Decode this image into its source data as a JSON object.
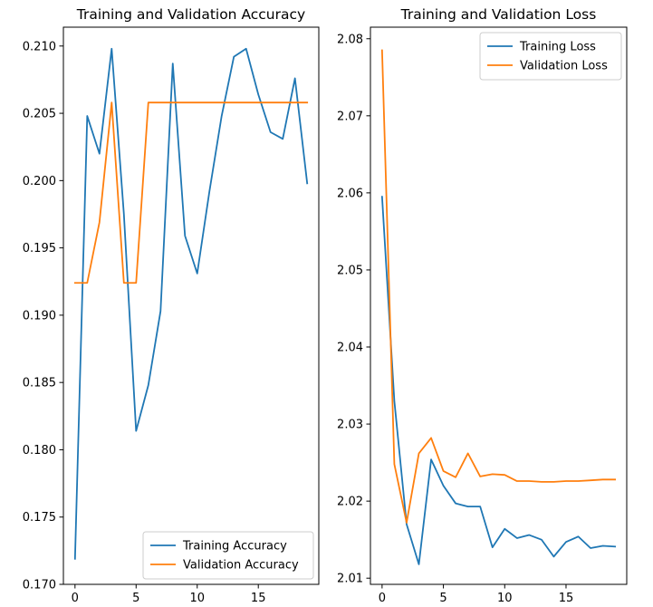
{
  "chart_data": [
    {
      "type": "line",
      "title": "Training and Validation Accuracy",
      "xlabel": "",
      "ylabel": "",
      "xlim": [
        -0.95,
        19.95
      ],
      "ylim": [
        0.17,
        0.2114
      ],
      "xticks": [
        0,
        5,
        10,
        15
      ],
      "xtick_labels": [
        "0",
        "5",
        "10",
        "15"
      ],
      "yticks": [
        0.17,
        0.175,
        0.18,
        0.185,
        0.19,
        0.195,
        0.2,
        0.205,
        0.21
      ],
      "ytick_labels": [
        "0.170",
        "0.175",
        "0.180",
        "0.185",
        "0.190",
        "0.195",
        "0.200",
        "0.205",
        "0.210"
      ],
      "legend_position": "lower-right",
      "grid": false,
      "x": [
        0,
        1,
        2,
        3,
        4,
        5,
        6,
        7,
        8,
        9,
        10,
        11,
        12,
        13,
        14,
        15,
        16,
        17,
        18,
        19
      ],
      "series": [
        {
          "name": "Training Accuracy",
          "color": "#1f77b4",
          "values": [
            0.1719,
            0.2048,
            0.202,
            0.2098,
            0.1975,
            0.1814,
            0.1848,
            0.1903,
            0.2087,
            0.1959,
            0.1931,
            0.1992,
            0.2048,
            0.2092,
            0.2098,
            0.2064,
            0.2036,
            0.2031,
            0.2076,
            0.1998
          ]
        },
        {
          "name": "Validation Accuracy",
          "color": "#ff7f0e",
          "values": [
            0.1924,
            0.1924,
            0.1969,
            0.2058,
            0.1924,
            0.1924,
            0.2058,
            0.2058,
            0.2058,
            0.2058,
            0.2058,
            0.2058,
            0.2058,
            0.2058,
            0.2058,
            0.2058,
            0.2058,
            0.2058,
            0.2058,
            0.2058
          ]
        }
      ]
    },
    {
      "type": "line",
      "title": "Training and Validation Loss",
      "xlabel": "",
      "ylabel": "",
      "xlim": [
        -0.95,
        19.95
      ],
      "ylim": [
        2.0092,
        2.0815
      ],
      "xticks": [
        0,
        5,
        10,
        15
      ],
      "xtick_labels": [
        "0",
        "5",
        "10",
        "15"
      ],
      "yticks": [
        2.01,
        2.02,
        2.03,
        2.04,
        2.05,
        2.06,
        2.07,
        2.08
      ],
      "ytick_labels": [
        "2.01",
        "2.02",
        "2.03",
        "2.04",
        "2.05",
        "2.06",
        "2.07",
        "2.08"
      ],
      "legend_position": "upper-right",
      "grid": false,
      "x": [
        0,
        1,
        2,
        3,
        4,
        5,
        6,
        7,
        8,
        9,
        10,
        11,
        12,
        13,
        14,
        15,
        16,
        17,
        18,
        19
      ],
      "series": [
        {
          "name": "Training Loss",
          "color": "#1f77b4",
          "values": [
            2.0595,
            2.033,
            2.017,
            2.0118,
            2.0254,
            2.022,
            2.0197,
            2.0193,
            2.0193,
            2.014,
            2.0164,
            2.0152,
            2.0156,
            2.015,
            2.0128,
            2.0147,
            2.0154,
            2.0139,
            2.0142,
            2.0141
          ]
        },
        {
          "name": "Validation Loss",
          "color": "#ff7f0e",
          "values": [
            2.0785,
            2.0248,
            2.0172,
            2.0262,
            2.0282,
            2.0239,
            2.0231,
            2.0262,
            2.0232,
            2.0235,
            2.0234,
            2.0226,
            2.0226,
            2.0225,
            2.0225,
            2.0226,
            2.0226,
            2.0227,
            2.0228,
            2.0228
          ]
        }
      ]
    }
  ]
}
